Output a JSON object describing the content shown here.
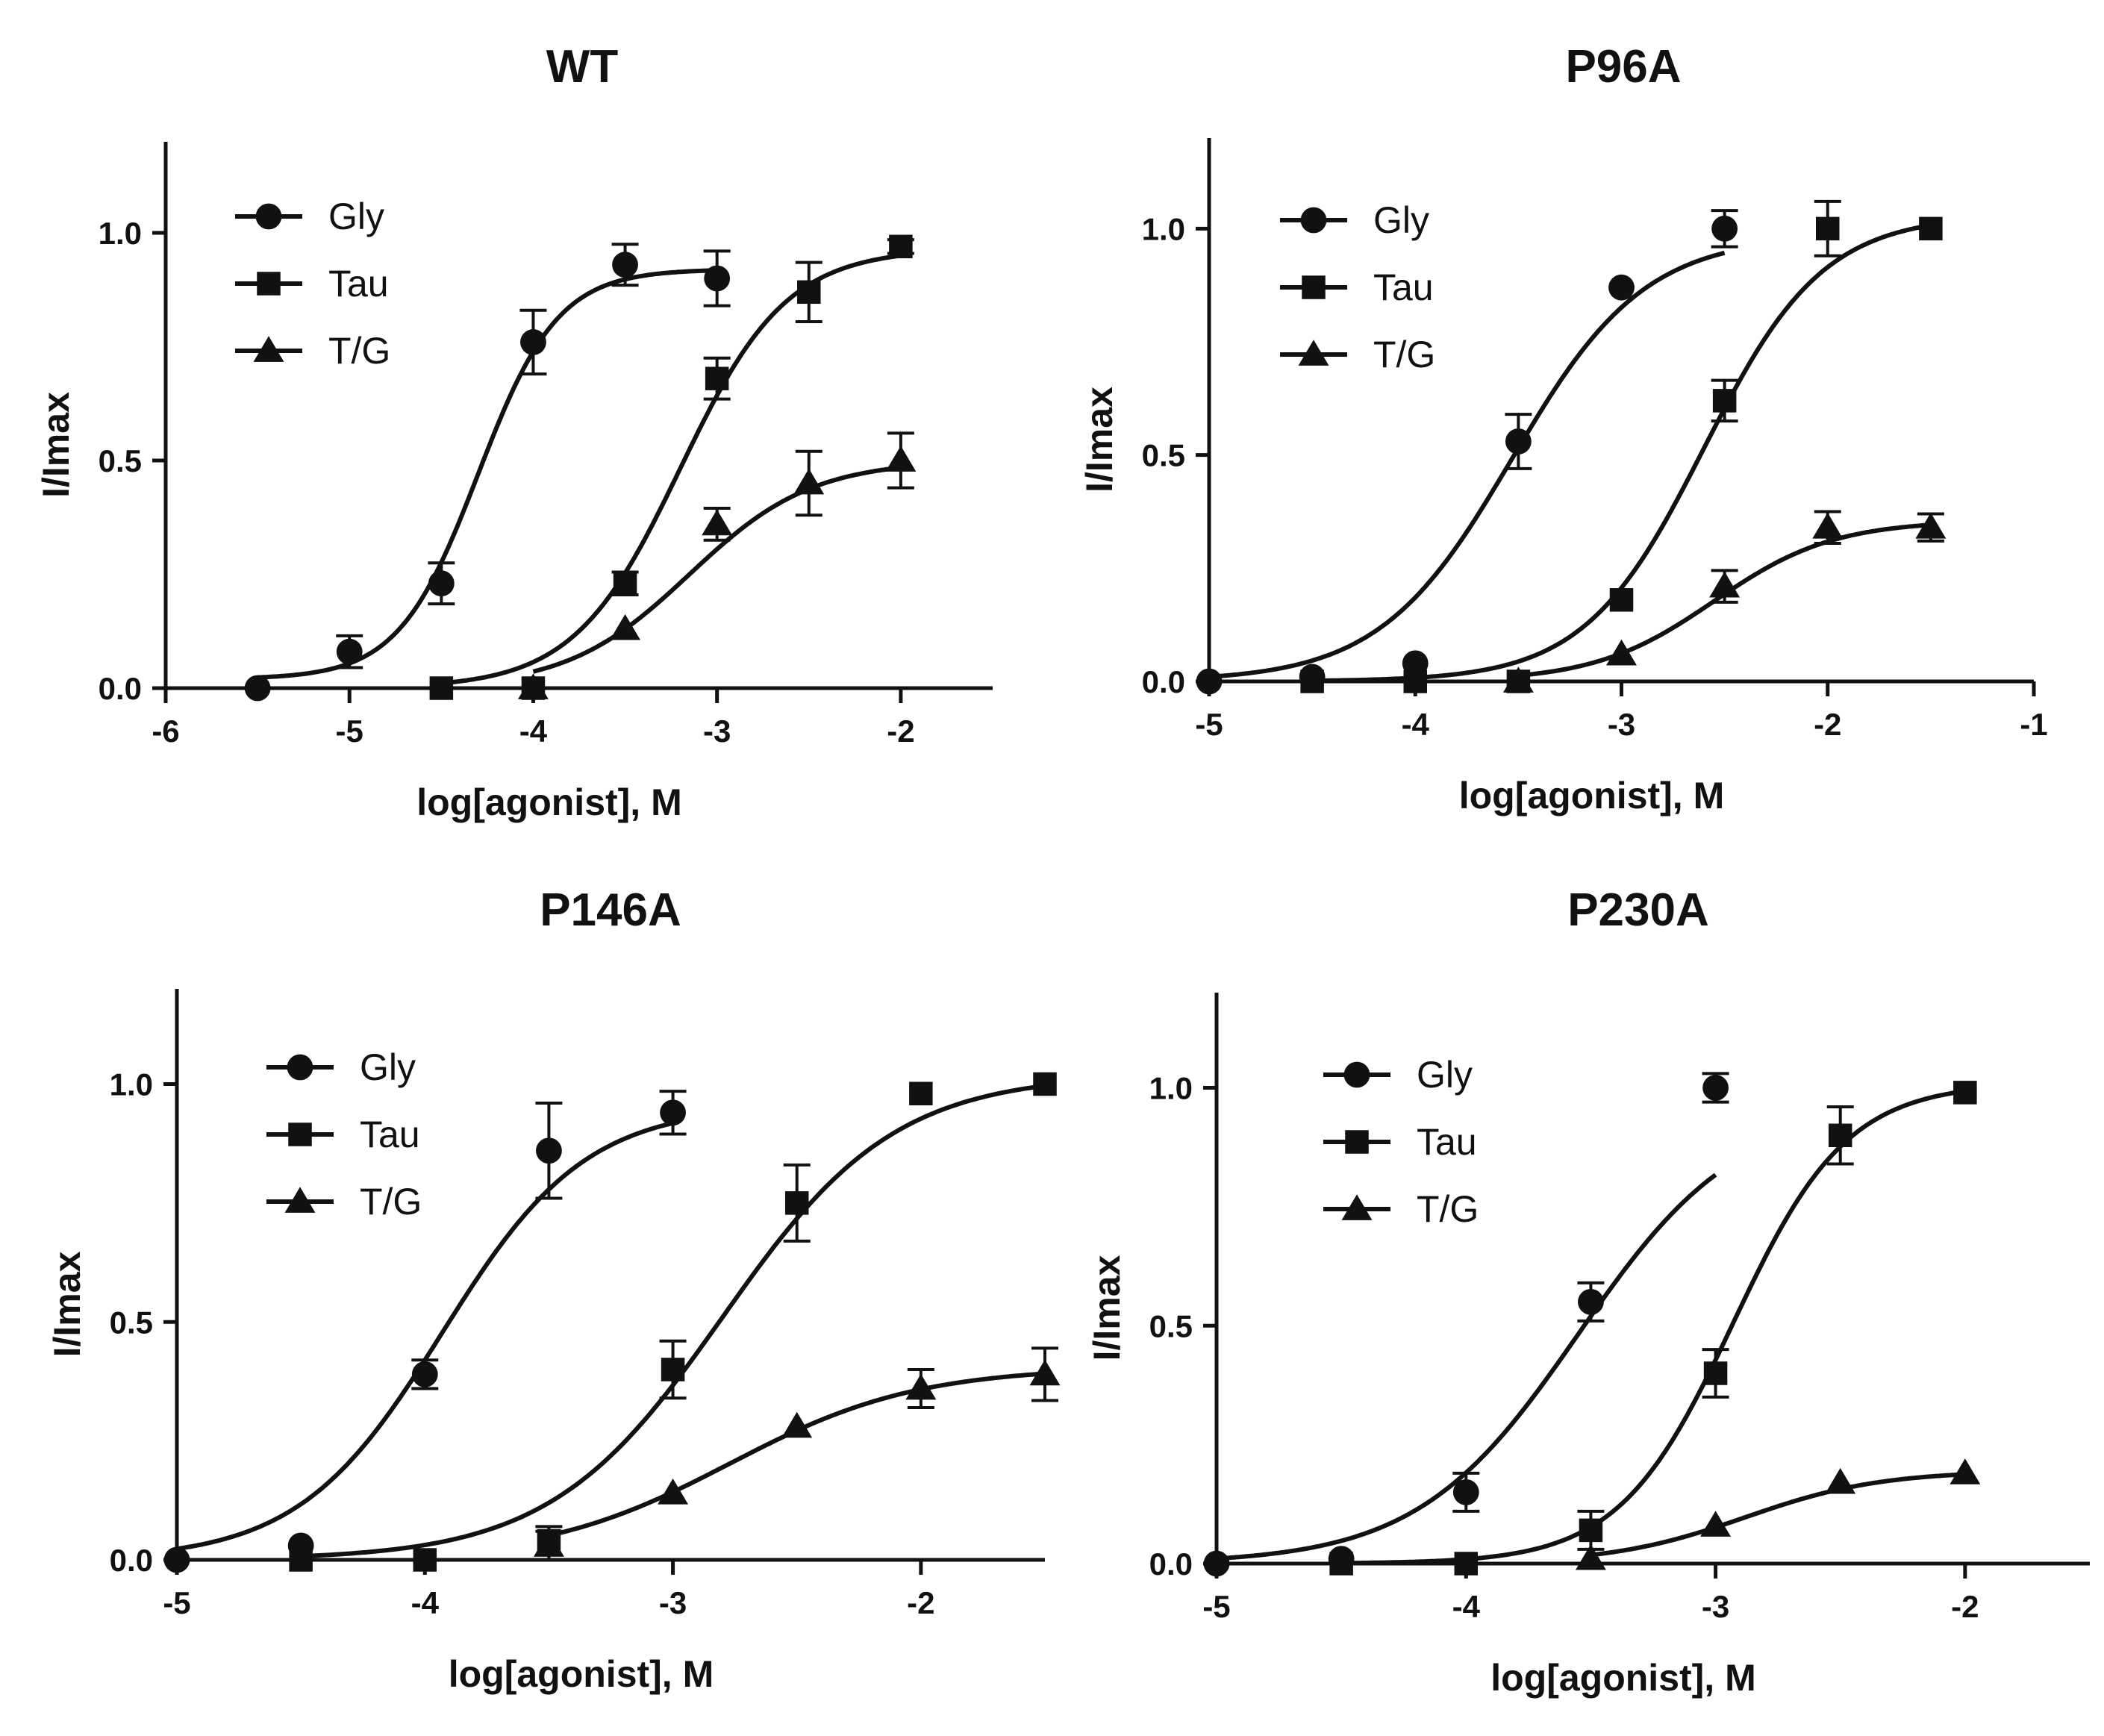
{
  "chart_data": [
    {
      "type": "line",
      "title": "WT",
      "xlabel": "log[agonist], M",
      "ylabel": "I/Imax",
      "xlim": [
        -6,
        -1.5
      ],
      "ylim": [
        0,
        1.2
      ],
      "xticks": [
        -6,
        -5,
        -4,
        -3,
        -2
      ],
      "yticks": [
        0.0,
        0.5,
        1.0
      ],
      "xtick_labels": [
        "-6",
        "-5",
        "-4",
        "-3",
        "-2"
      ],
      "ytick_labels": [
        "0.0",
        "0.5",
        "1.0"
      ],
      "legend_position": "top-left",
      "series": [
        {
          "name": "Gly",
          "marker": "circle",
          "x": [
            -5.5,
            -5,
            -4.5,
            -4,
            -3.5,
            -3
          ],
          "y": [
            0.0,
            0.08,
            0.23,
            0.76,
            0.93,
            0.9
          ],
          "err": [
            0.0,
            0.035,
            0.045,
            0.07,
            0.045,
            0.06
          ],
          "fit": {
            "bottom": 0.02,
            "top": 0.92,
            "logEC50": -4.3,
            "hill": 2.0
          }
        },
        {
          "name": "Tau",
          "marker": "square",
          "x": [
            -4.5,
            -4,
            -3.5,
            -3,
            -2.5,
            -2
          ],
          "y": [
            0.0,
            0.0,
            0.23,
            0.68,
            0.87,
            0.97
          ],
          "err": [
            0.0,
            0.0,
            0.025,
            0.045,
            0.065,
            0.015
          ],
          "fit": {
            "bottom": 0.0,
            "top": 0.965,
            "logEC50": -3.2,
            "hill": 1.5
          }
        },
        {
          "name": "T/G",
          "marker": "triangle",
          "x": [
            -4,
            -3.5,
            -3,
            -2.5,
            -2
          ],
          "y": [
            0.0,
            0.13,
            0.36,
            0.45,
            0.5
          ],
          "err": [
            0.0,
            0.0,
            0.035,
            0.07,
            0.06
          ],
          "fit": {
            "bottom": 0.0,
            "top": 0.5,
            "logEC50": -3.15,
            "hill": 1.3
          }
        }
      ]
    },
    {
      "type": "line",
      "title": "P96A",
      "xlabel": "log[agonist], M",
      "ylabel": "I/Imax",
      "xlim": [
        -5,
        -1
      ],
      "ylim": [
        0,
        1.2
      ],
      "xticks": [
        -5,
        -4,
        -3,
        -2,
        -1
      ],
      "yticks": [
        0.0,
        0.5,
        1.0
      ],
      "xtick_labels": [
        "-5",
        "-4",
        "-3",
        "-2",
        "-1"
      ],
      "ytick_labels": [
        "0.0",
        "0.5",
        "1.0"
      ],
      "legend_position": "top-left",
      "series": [
        {
          "name": "Gly",
          "marker": "circle",
          "x": [
            -5,
            -4.5,
            -4,
            -3.5,
            -3,
            -2.5
          ],
          "y": [
            0.0,
            0.01,
            0.04,
            0.53,
            0.87,
            1.0
          ],
          "err": [
            0.0,
            0.0,
            0.0,
            0.06,
            0.0,
            0.04
          ],
          "fit": {
            "bottom": 0.0,
            "top": 0.985,
            "logEC50": -3.53,
            "hill": 1.35
          }
        },
        {
          "name": "Tau",
          "marker": "square",
          "x": [
            -4.5,
            -4,
            -3.5,
            -3,
            -2.5,
            -2,
            -1.5
          ],
          "y": [
            0.0,
            0.0,
            0.0,
            0.18,
            0.62,
            1.0,
            1.0
          ],
          "err": [
            0.0,
            0.0,
            0.0,
            0.0,
            0.045,
            0.06,
            0.0
          ],
          "fit": {
            "bottom": 0.0,
            "top": 1.03,
            "logEC50": -2.6,
            "hill": 1.5
          }
        },
        {
          "name": "T/G",
          "marker": "triangle",
          "x": [
            -3.5,
            -3,
            -2.5,
            -2,
            -1.5
          ],
          "y": [
            0.0,
            0.06,
            0.21,
            0.34,
            0.34
          ],
          "err": [
            0.0,
            0.0,
            0.035,
            0.035,
            0.03
          ],
          "fit": {
            "bottom": 0.0,
            "top": 0.355,
            "logEC50": -2.55,
            "hill": 1.5
          }
        }
      ]
    },
    {
      "type": "line",
      "title": "P146A",
      "xlabel": "log[agonist], M",
      "ylabel": "I/Imax",
      "xlim": [
        -5,
        -1.5
      ],
      "ylim": [
        0,
        1.2
      ],
      "xticks": [
        -5,
        -4,
        -3,
        -2
      ],
      "yticks": [
        0.0,
        0.5,
        1.0
      ],
      "xtick_labels": [
        "-5",
        "-4",
        "-3",
        "-2"
      ],
      "ytick_labels": [
        "0.0",
        "0.5",
        "1.0"
      ],
      "legend_position": "top-left",
      "series": [
        {
          "name": "Gly",
          "marker": "circle",
          "x": [
            -5,
            -4.5,
            -4,
            -3.5,
            -3
          ],
          "y": [
            0.0,
            0.03,
            0.39,
            0.86,
            0.94
          ],
          "err": [
            0.0,
            0.0,
            0.03,
            0.1,
            0.045
          ],
          "fit": {
            "bottom": 0.0,
            "top": 0.955,
            "logEC50": -3.93,
            "hill": 1.5
          }
        },
        {
          "name": "Tau",
          "marker": "square",
          "x": [
            -4.5,
            -4,
            -3.5,
            -3,
            -2.5,
            -2,
            -1.5
          ],
          "y": [
            0.0,
            0.0,
            0.04,
            0.4,
            0.75,
            0.98,
            1.0
          ],
          "err": [
            0.0,
            0.0,
            0.03,
            0.06,
            0.08,
            0.0,
            0.0
          ],
          "fit": {
            "bottom": 0.0,
            "top": 1.02,
            "logEC50": -2.8,
            "hill": 1.25
          }
        },
        {
          "name": "T/G",
          "marker": "triangle",
          "x": [
            -3.5,
            -3,
            -2.5,
            -2,
            -1.5
          ],
          "y": [
            0.03,
            0.14,
            0.28,
            0.36,
            0.39
          ],
          "err": [
            0.03,
            0.0,
            0.0,
            0.04,
            0.055
          ],
          "fit": {
            "bottom": 0.0,
            "top": 0.405,
            "logEC50": -2.77,
            "hill": 1.15
          }
        }
      ]
    },
    {
      "type": "line",
      "title": "P230A",
      "xlabel": "log[agonist], M",
      "ylabel": "I/Imax",
      "xlim": [
        -5,
        -1.5
      ],
      "ylim": [
        0,
        1.2
      ],
      "xticks": [
        -5,
        -4,
        -3,
        -2
      ],
      "yticks": [
        0.0,
        0.5,
        1.0
      ],
      "xtick_labels": [
        "-5",
        "-4",
        "-3",
        "-2"
      ],
      "ytick_labels": [
        "0.0",
        "0.5",
        "1.0"
      ],
      "legend_position": "top-left",
      "series": [
        {
          "name": "Gly",
          "marker": "circle",
          "x": [
            -5,
            -4.5,
            -4,
            -3.5,
            -3
          ],
          "y": [
            0.0,
            0.01,
            0.15,
            0.55,
            1.0
          ],
          "err": [
            0.0,
            0.0,
            0.04,
            0.04,
            0.03
          ],
          "fit": {
            "bottom": 0.0,
            "top": 0.965,
            "logEC50": -3.55,
            "hill": 1.35
          }
        },
        {
          "name": "Tau",
          "marker": "square",
          "x": [
            -4.5,
            -4,
            -3.5,
            -3,
            -2.5,
            -2
          ],
          "y": [
            0.0,
            0.0,
            0.07,
            0.4,
            0.9,
            0.99
          ],
          "err": [
            0.0,
            0.0,
            0.04,
            0.05,
            0.06,
            0.0
          ],
          "fit": {
            "bottom": 0.0,
            "top": 1.01,
            "logEC50": -2.93,
            "hill": 1.9
          }
        },
        {
          "name": "T/G",
          "marker": "triangle",
          "x": [
            -3.5,
            -3,
            -2.5,
            -2
          ],
          "y": [
            0.01,
            0.08,
            0.17,
            0.19
          ],
          "err": [
            0.0,
            0.0,
            0.0,
            0.0
          ],
          "fit": {
            "bottom": 0.0,
            "top": 0.195,
            "logEC50": -2.88,
            "hill": 1.6
          }
        }
      ]
    }
  ]
}
